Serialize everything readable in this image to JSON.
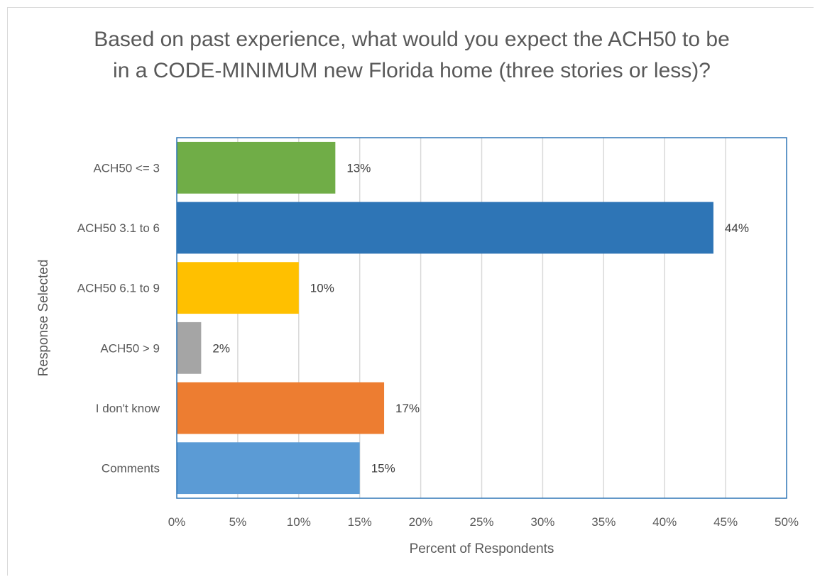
{
  "chart_data": {
    "type": "bar",
    "orientation": "horizontal",
    "title": "Based on past experience, what would you expect the ACH50 to be in a CODE-MINIMUM new Florida home (three stories or less)?",
    "xlabel": "Percent of Respondents",
    "ylabel": "Response Selected",
    "categories": [
      "ACH50 <= 3",
      "ACH50 3.1 to 6",
      "ACH50 6.1 to 9",
      "ACH50 > 9",
      "I don't know",
      "Comments"
    ],
    "values": [
      13,
      44,
      10,
      2,
      17,
      15
    ],
    "data_labels": [
      "13%",
      "44%",
      "10%",
      "2%",
      "17%",
      "15%"
    ],
    "colors": [
      "#70ad47",
      "#2e75b6",
      "#ffc000",
      "#a5a5a5",
      "#ed7d31",
      "#5b9bd5"
    ],
    "xlim": [
      0,
      50
    ],
    "x_ticks": [
      0,
      5,
      10,
      15,
      20,
      25,
      30,
      35,
      40,
      45,
      50
    ],
    "x_tick_labels": [
      "0%",
      "5%",
      "10%",
      "15%",
      "20%",
      "25%",
      "30%",
      "35%",
      "40%",
      "45%",
      "50%"
    ],
    "grid": true,
    "legend": "none",
    "plot_border_color": "#2e75b6",
    "grid_color": "#d9d9d9"
  }
}
